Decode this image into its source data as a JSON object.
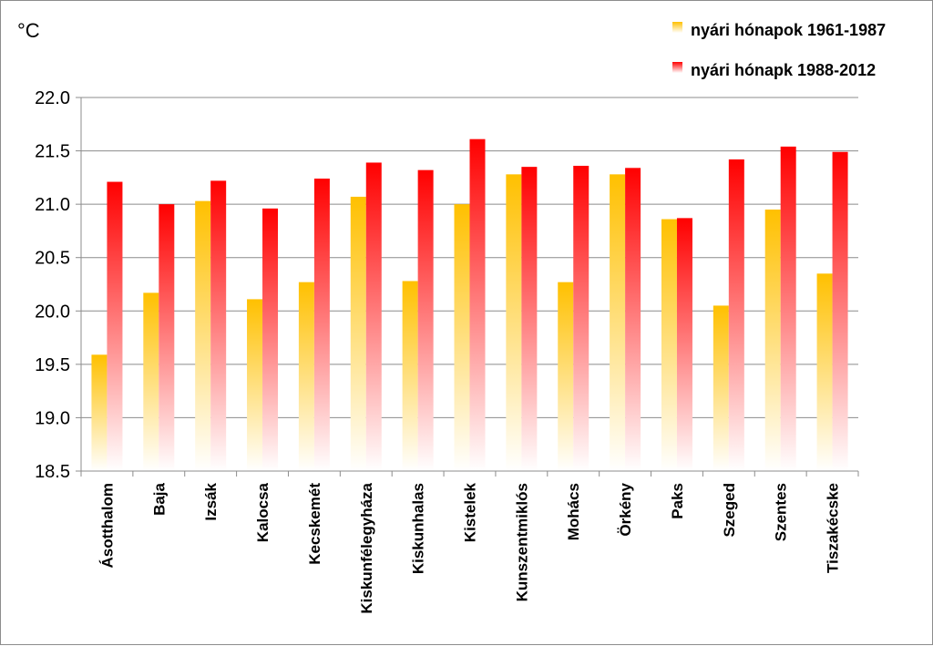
{
  "chart_data": {
    "type": "bar",
    "title": "",
    "ylabel": "°C",
    "xlabel": "",
    "ylim": [
      18.5,
      22.0
    ],
    "ytick_step": 0.5,
    "ytick_labels": [
      "18.5",
      "19.0",
      "19.5",
      "20.0",
      "20.5",
      "21.0",
      "21.5",
      "22.0"
    ],
    "grid": "horizontal",
    "legend_position": "top-right",
    "categories": [
      "Ásotthalom",
      "Baja",
      "Izsák",
      "Kalocsa",
      "Kecskemét",
      "Kiskunfélegyháza",
      "Kiskunhalas",
      "Kistelek",
      "Kunszentmiklós",
      "Mohács",
      "Örkény",
      "Paks",
      "Szeged",
      "Szentes",
      "Tiszakécske"
    ],
    "series": [
      {
        "name": "nyári hónapok 1961-1987",
        "color": "#FFC000",
        "values": [
          19.59,
          20.17,
          21.03,
          20.11,
          20.27,
          21.07,
          20.28,
          21.0,
          21.28,
          20.27,
          21.28,
          20.86,
          20.05,
          20.95,
          20.35
        ]
      },
      {
        "name": "nyári hónapk 1988-2012",
        "color": "#FF0000",
        "values": [
          21.21,
          21.0,
          21.22,
          20.96,
          21.24,
          21.39,
          21.32,
          21.61,
          21.35,
          21.36,
          21.34,
          20.87,
          21.42,
          21.54,
          21.49
        ]
      }
    ]
  }
}
